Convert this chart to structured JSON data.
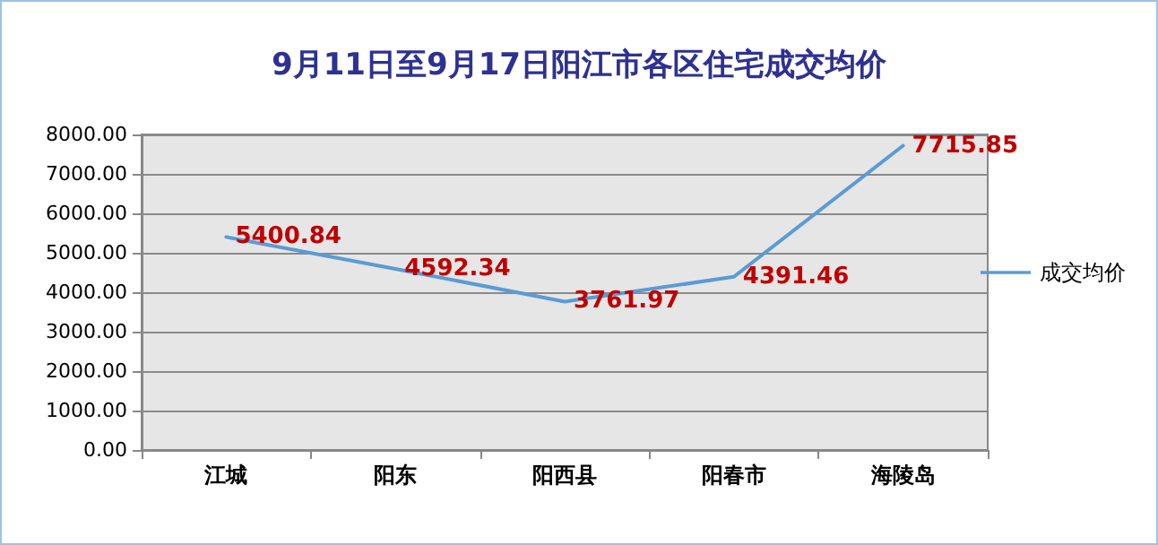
{
  "chart_data": {
    "type": "line",
    "title": "9月11日至9月17日阳江市各区住宅成交均价",
    "categories": [
      "江城",
      "阳东",
      "阳西县",
      "阳春市",
      "海陵岛"
    ],
    "series": [
      {
        "name": "成交均价",
        "color": "#5b9bd5",
        "values": [
          5400.84,
          4592.34,
          3761.97,
          4391.46,
          7715.85
        ]
      }
    ],
    "ylim": [
      0,
      8000
    ],
    "yticks": [
      {
        "value": 0,
        "label": "0.00"
      },
      {
        "value": 1000,
        "label": "1000.00"
      },
      {
        "value": 2000,
        "label": "2000.00"
      },
      {
        "value": 3000,
        "label": "3000.00"
      },
      {
        "value": 4000,
        "label": "4000.00"
      },
      {
        "value": 5000,
        "label": "5000.00"
      },
      {
        "value": 6000,
        "label": "6000.00"
      },
      {
        "value": 7000,
        "label": "7000.00"
      },
      {
        "value": 8000,
        "label": "8000.00"
      }
    ],
    "grid": "y",
    "legend": "right",
    "marker": "none",
    "line_style": "solid",
    "data_labels": true
  }
}
